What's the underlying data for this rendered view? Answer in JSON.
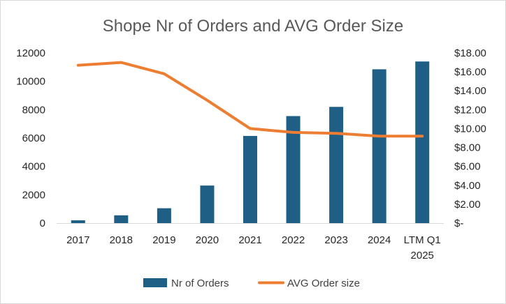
{
  "chart_data": {
    "type": "bar",
    "title": "Shope Nr of Orders and AVG Order Size",
    "categories": [
      [
        "2017"
      ],
      [
        "2018"
      ],
      [
        "2019"
      ],
      [
        "2020"
      ],
      [
        "2021"
      ],
      [
        "2022"
      ],
      [
        "2023"
      ],
      [
        "2024"
      ],
      [
        "LTM Q1",
        "2025"
      ]
    ],
    "series": [
      {
        "name": "Nr of Orders",
        "type": "bar",
        "axis": "left",
        "color": "#1f5f86",
        "values": [
          200,
          550,
          1050,
          2650,
          6150,
          7550,
          8200,
          10850,
          11400
        ]
      },
      {
        "name": "AVG Order size",
        "type": "line",
        "axis": "right",
        "color": "#ed7d31",
        "values": [
          16.7,
          17.0,
          15.8,
          13.0,
          10.0,
          9.6,
          9.5,
          9.2,
          9.2
        ]
      }
    ],
    "y_left": {
      "ylim": [
        0,
        12000
      ],
      "ticks": [
        0,
        2000,
        4000,
        6000,
        8000,
        10000,
        12000
      ],
      "tick_labels": [
        "0",
        "2000",
        "4000",
        "6000",
        "8000",
        "10000",
        "12000"
      ]
    },
    "y_right": {
      "ylim": [
        0,
        18
      ],
      "ticks": [
        0,
        2,
        4,
        6,
        8,
        10,
        12,
        14,
        16,
        18
      ],
      "tick_labels": [
        "$-",
        "$2.00",
        "$4.00",
        "$6.00",
        "$8.00",
        "$10.00",
        "$12.00",
        "$14.00",
        "$16.00",
        "$18.00"
      ]
    },
    "grid": false,
    "legend": "bottom"
  }
}
